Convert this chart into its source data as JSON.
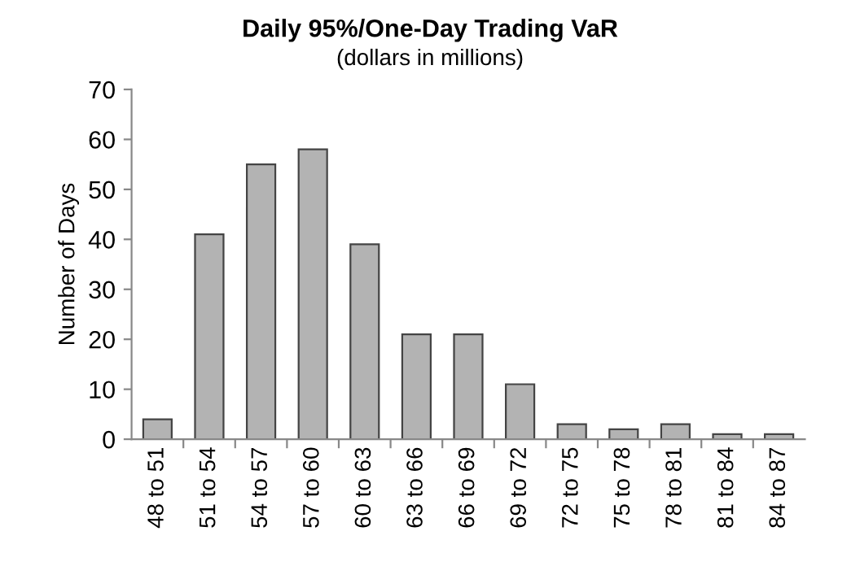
{
  "chart_data": {
    "type": "bar",
    "title": "Daily 95%/One-Day Trading VaR",
    "subtitle": "(dollars in millions)",
    "ylabel": "Number of Days",
    "categories": [
      "48 to 51",
      "51 to 54",
      "54 to 57",
      "57 to 60",
      "60 to 63",
      "63 to 66",
      "66 to 69",
      "69 to 72",
      "72 to 75",
      "75 to 78",
      "78 to 81",
      "81 to 84",
      "84 to 87"
    ],
    "values": [
      4,
      41,
      55,
      58,
      39,
      21,
      21,
      11,
      3,
      2,
      3,
      1,
      1
    ],
    "color": "#b3b3b3",
    "ylim": [
      0,
      70
    ],
    "yticks": [
      0,
      10,
      20,
      30,
      40,
      50,
      60,
      70
    ],
    "grid": false,
    "legend": false
  }
}
